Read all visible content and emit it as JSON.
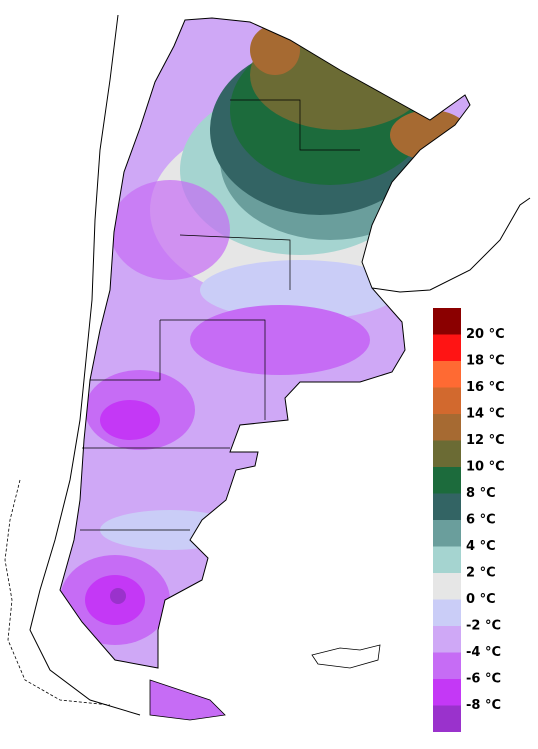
{
  "legend": {
    "labels": [
      "20 °C",
      "18 °C",
      "16 °C",
      "14 °C",
      "12 °C",
      "10 °C",
      "8 °C",
      "6 °C",
      "4 °C",
      "2 °C",
      "0 °C",
      "-2 °C",
      "-4 °C",
      "-6 °C",
      "-8 °C"
    ],
    "colors": [
      "#8b0000",
      "#ff1414",
      "#ff6a33",
      "#d2692e",
      "#a66a32",
      "#6b6b34",
      "#1c6b3c",
      "#336464",
      "#6a9e9c",
      "#a5d4d0",
      "#e6e6e6",
      "#cacdf7",
      "#cfa8f6",
      "#c66cf5",
      "#c438f6",
      "#9a32cc"
    ]
  }
}
